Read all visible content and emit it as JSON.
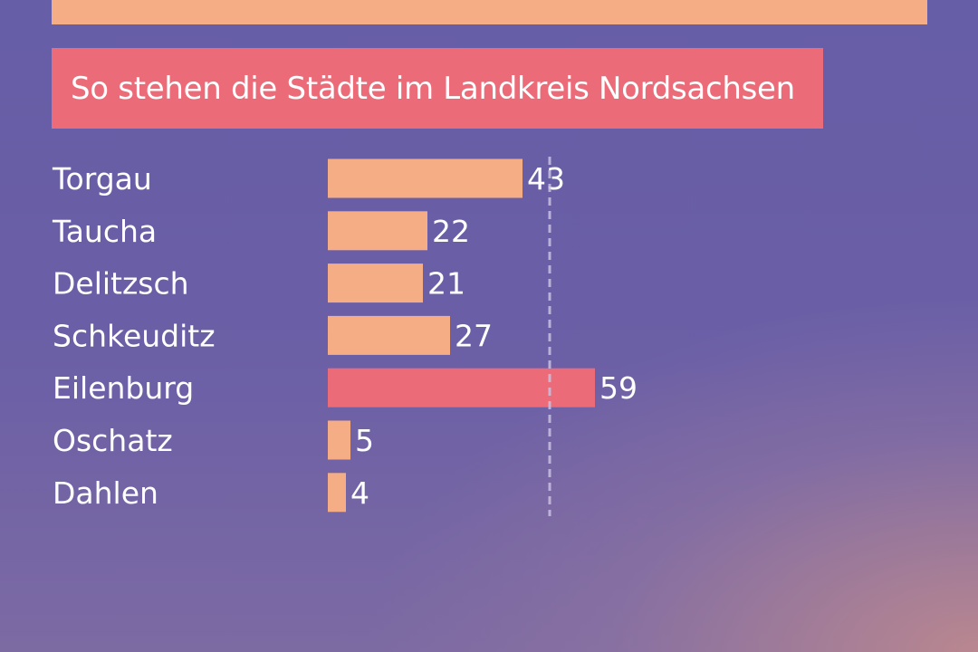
{
  "header": {
    "title": "So stehen die Städte im Landkreis Nordsachsen"
  },
  "colors": {
    "bar": "#f5ad86",
    "highlight_bar": "#ec6b78",
    "title_background": "#ec6b78",
    "reference_line": "#c9c0e0"
  },
  "chart_data": {
    "type": "bar",
    "orientation": "horizontal",
    "title": "So stehen die Städte im Landkreis Nordsachsen",
    "categories": [
      "Torgau",
      "Taucha",
      "Delitzsch",
      "Schkeuditz",
      "Eilenburg",
      "Oschatz",
      "Dahlen"
    ],
    "values": [
      43,
      22,
      21,
      27,
      59,
      5,
      4
    ],
    "highlighted_category": "Eilenburg",
    "reference_line_value": 49,
    "reference_line_style": "dashed",
    "value_labels": true,
    "grid": false,
    "xlabel": "",
    "ylabel": ""
  }
}
